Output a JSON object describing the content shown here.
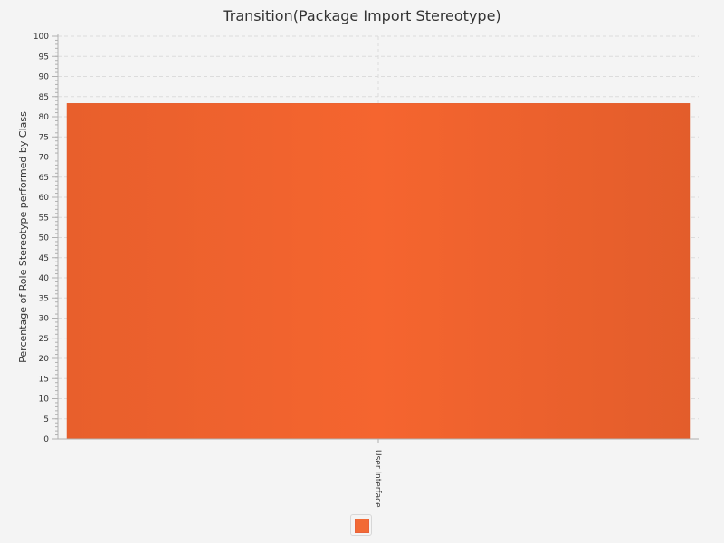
{
  "chart_data": {
    "type": "bar",
    "title": "Transition(Package Import Stereotype)",
    "xlabel": "",
    "ylabel": "Percentage of Role Stereotype performed by Class",
    "categories": [
      "User Interface"
    ],
    "series": [
      {
        "values": [
          83.3
        ]
      }
    ],
    "ylim": [
      0,
      100
    ],
    "y_major_step": 5,
    "y_tick_labels": [
      "0",
      "5",
      "10",
      "15",
      "20",
      "25",
      "30",
      "35",
      "40",
      "45",
      "50",
      "55",
      "60",
      "65",
      "70",
      "75",
      "80",
      "85",
      "90",
      "95",
      "100"
    ],
    "grid": true,
    "legend_position": "bottom",
    "colors": {
      "bar": "#f26a35",
      "bar_edge": "#e05a2a",
      "background": "#f4f4f4",
      "grid": "#dcdcdc",
      "axis": "#b0b0b0"
    }
  }
}
